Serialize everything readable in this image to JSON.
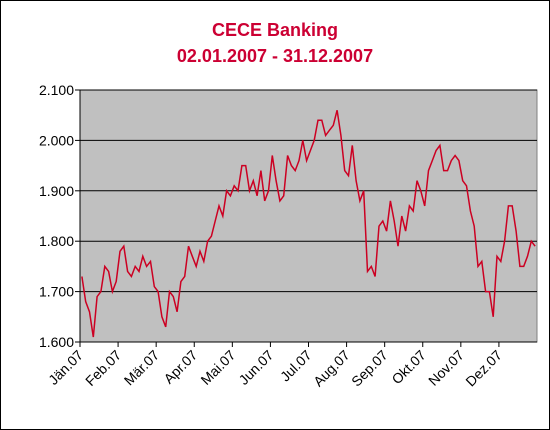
{
  "chart_data": {
    "type": "line",
    "title": "CECE Banking",
    "subtitle": "02.01.2007 - 31.12.2007",
    "categories": [
      "Jän.07",
      null,
      null,
      null,
      null,
      null,
      null,
      null,
      null,
      null,
      "Feb.07",
      null,
      null,
      null,
      null,
      null,
      null,
      null,
      null,
      null,
      "Mär.07",
      null,
      null,
      null,
      null,
      null,
      null,
      null,
      null,
      null,
      "Apr.07",
      null,
      null,
      null,
      null,
      null,
      null,
      null,
      null,
      null,
      "Mai.07",
      null,
      null,
      null,
      null,
      null,
      null,
      null,
      null,
      null,
      "Jun.07",
      null,
      null,
      null,
      null,
      null,
      null,
      null,
      null,
      null,
      "Jul.07",
      null,
      null,
      null,
      null,
      null,
      null,
      null,
      null,
      null,
      "Aug.07",
      null,
      null,
      null,
      null,
      null,
      null,
      null,
      null,
      null,
      "Sep.07",
      null,
      null,
      null,
      null,
      null,
      null,
      null,
      null,
      null,
      "Okt.07",
      null,
      null,
      null,
      null,
      null,
      null,
      null,
      null,
      null,
      "Nov.07",
      null,
      null,
      null,
      null,
      null,
      null,
      null,
      null,
      null,
      "Dez.07",
      null,
      null,
      null,
      null,
      null,
      null,
      null,
      null,
      null
    ],
    "series": [
      {
        "color": "#cc0022",
        "values": [
          1.73,
          1.68,
          1.66,
          1.61,
          1.69,
          1.7,
          1.75,
          1.74,
          1.7,
          1.72,
          1.78,
          1.79,
          1.74,
          1.73,
          1.75,
          1.74,
          1.77,
          1.75,
          1.76,
          1.71,
          1.7,
          1.65,
          1.63,
          1.7,
          1.69,
          1.66,
          1.72,
          1.73,
          1.79,
          1.77,
          1.75,
          1.78,
          1.76,
          1.8,
          1.81,
          1.84,
          1.87,
          1.85,
          1.9,
          1.89,
          1.91,
          1.9,
          1.95,
          1.95,
          1.9,
          1.92,
          1.89,
          1.94,
          1.88,
          1.9,
          1.97,
          1.92,
          1.88,
          1.89,
          1.97,
          1.95,
          1.94,
          1.96,
          2.0,
          1.96,
          1.98,
          2.0,
          2.04,
          2.04,
          2.01,
          2.02,
          2.03,
          2.06,
          2.01,
          1.94,
          1.93,
          1.99,
          1.92,
          1.88,
          1.9,
          1.74,
          1.75,
          1.73,
          1.83,
          1.84,
          1.82,
          1.88,
          1.84,
          1.79,
          1.85,
          1.82,
          1.87,
          1.86,
          1.92,
          1.9,
          1.87,
          1.94,
          1.96,
          1.98,
          1.99,
          1.94,
          1.94,
          1.96,
          1.97,
          1.96,
          1.92,
          1.91,
          1.86,
          1.83,
          1.75,
          1.76,
          1.7,
          1.7,
          1.65,
          1.77,
          1.76,
          1.8,
          1.87,
          1.87,
          1.82,
          1.75,
          1.75,
          1.77,
          1.8,
          1.79
        ]
      }
    ],
    "ylim": [
      1.6,
      2.1
    ],
    "yticks": [
      {
        "value": 1.6,
        "label": "1.600"
      },
      {
        "value": 1.7,
        "label": "1.700"
      },
      {
        "value": 1.8,
        "label": "1.800"
      },
      {
        "value": 1.9,
        "label": "1.900"
      },
      {
        "value": 2.0,
        "label": "2.000"
      },
      {
        "value": 2.1,
        "label": "2.100"
      }
    ],
    "grid": true
  }
}
